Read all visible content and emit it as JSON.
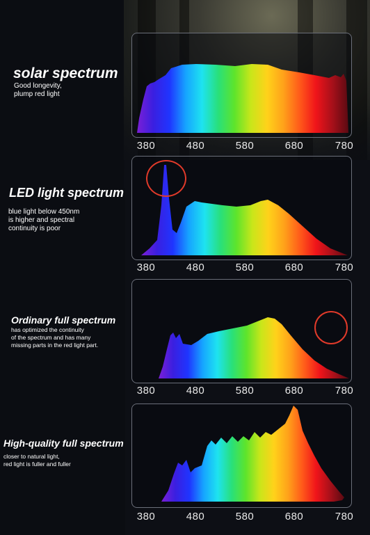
{
  "sections": [
    {
      "title": "solar spectrum",
      "description": "Good longevity,\nplump red light",
      "ticks": [
        "380",
        "480",
        "580",
        "680",
        "780"
      ]
    },
    {
      "title": "LED light spectrum",
      "description": "  blue light below 450nm\nis higher and spectral\n continuity is poor",
      "ticks": [
        "380",
        "480",
        "580",
        "680",
        "780"
      ]
    },
    {
      "title": "Ordinary full spectrum",
      "description": "has optimized the continuity\nof the spectrum and has many\nmissing parts in the red light part.",
      "ticks": [
        "380",
        "480",
        "580",
        "680",
        "780"
      ]
    },
    {
      "title": "High-quality full spectrum",
      "description": "  closer to natural light,\nred light is fuller and fuller",
      "ticks": [
        "380",
        "480",
        "580",
        "680",
        "780"
      ]
    }
  ],
  "spectrum_colors": [
    "#7b1fd6",
    "#3a1fe0",
    "#1f35ff",
    "#16a4ff",
    "#1ee3f0",
    "#29e07a",
    "#5ee42b",
    "#c9e61a",
    "#ffd21a",
    "#ffa21a",
    "#ff5a1a",
    "#f0141a",
    "#a8101a",
    "#5a0a12"
  ],
  "highlight_color": "#e13a2a"
}
